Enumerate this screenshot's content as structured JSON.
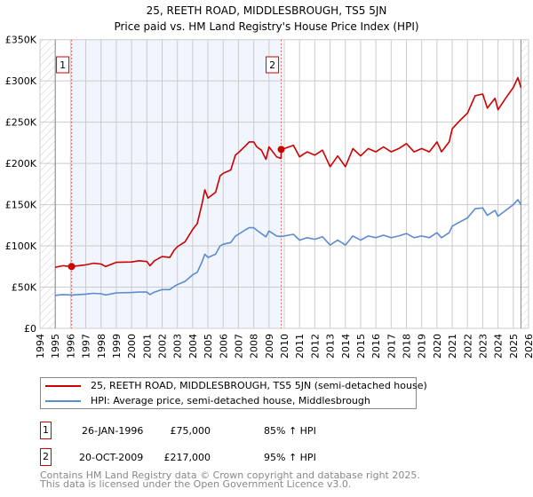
{
  "chart_data": {
    "type": "line",
    "title": "25, REETH ROAD, MIDDLESBROUGH, TS5 5JN",
    "subtitle": "Price paid vs. HM Land Registry's House Price Index (HPI)",
    "xlim": [
      1994,
      2026
    ],
    "ylim": [
      0,
      350000
    ],
    "x_ticks": [
      "1994",
      "1995",
      "1996",
      "1997",
      "1998",
      "1999",
      "2000",
      "2001",
      "2002",
      "2003",
      "2004",
      "2005",
      "2006",
      "2007",
      "2008",
      "2009",
      "2010",
      "2011",
      "2012",
      "2013",
      "2014",
      "2015",
      "2016",
      "2017",
      "2018",
      "2019",
      "2020",
      "2021",
      "2022",
      "2023",
      "2024",
      "2025",
      "2026"
    ],
    "y_ticks": [
      {
        "value": 0,
        "label": "£0"
      },
      {
        "value": 50000,
        "label": "£50K"
      },
      {
        "value": 100000,
        "label": "£100K"
      },
      {
        "value": 150000,
        "label": "£150K"
      },
      {
        "value": 200000,
        "label": "£200K"
      },
      {
        "value": 250000,
        "label": "£250K"
      },
      {
        "value": 300000,
        "label": "£300K"
      },
      {
        "value": 350000,
        "label": "£350K"
      }
    ],
    "grid": true,
    "data_range": [
      1995,
      2025.5
    ],
    "shaded_range": [
      1996.07,
      2009.8
    ],
    "series": [
      {
        "name": "25, REETH ROAD, MIDDLESBROUGH, TS5 5JN (semi-detached house)",
        "color": "#cc0000",
        "points": [
          [
            1995,
            74
          ],
          [
            1995.5,
            76
          ],
          [
            1996.07,
            75
          ],
          [
            1997,
            77
          ],
          [
            1997.5,
            79
          ],
          [
            1998,
            78
          ],
          [
            1998.3,
            75
          ],
          [
            1999,
            80
          ],
          [
            2000,
            80.5
          ],
          [
            2000.5,
            82
          ],
          [
            2001,
            81
          ],
          [
            2001.2,
            76
          ],
          [
            2001.5,
            82
          ],
          [
            2002,
            87
          ],
          [
            2002.5,
            86
          ],
          [
            2002.8,
            95
          ],
          [
            2003,
            99
          ],
          [
            2003.5,
            105
          ],
          [
            2004,
            120
          ],
          [
            2004.3,
            127
          ],
          [
            2004.6,
            150
          ],
          [
            2004.8,
            168
          ],
          [
            2005,
            158
          ],
          [
            2005.5,
            165
          ],
          [
            2005.8,
            185
          ],
          [
            2006,
            188
          ],
          [
            2006.5,
            192
          ],
          [
            2006.8,
            210
          ],
          [
            2007,
            213
          ],
          [
            2007.5,
            222
          ],
          [
            2007.7,
            226
          ],
          [
            2008,
            226
          ],
          [
            2008.2,
            220
          ],
          [
            2008.5,
            216
          ],
          [
            2008.8,
            205
          ],
          [
            2009,
            220
          ],
          [
            2009.5,
            208
          ],
          [
            2009.79,
            206
          ],
          [
            2009.8,
            217
          ],
          [
            2010,
            218
          ],
          [
            2010.6,
            222
          ],
          [
            2011,
            208
          ],
          [
            2011.5,
            214
          ],
          [
            2012,
            210
          ],
          [
            2012.5,
            216
          ],
          [
            2013,
            196
          ],
          [
            2013.5,
            209
          ],
          [
            2014,
            196
          ],
          [
            2014.5,
            218
          ],
          [
            2015,
            209
          ],
          [
            2015.5,
            218
          ],
          [
            2016,
            214
          ],
          [
            2016.5,
            220
          ],
          [
            2017,
            214
          ],
          [
            2017.5,
            218
          ],
          [
            2018,
            224
          ],
          [
            2018.5,
            214
          ],
          [
            2019,
            218
          ],
          [
            2019.5,
            214
          ],
          [
            2020,
            226
          ],
          [
            2020.3,
            214
          ],
          [
            2020.8,
            226
          ],
          [
            2021,
            242
          ],
          [
            2021.5,
            252
          ],
          [
            2022,
            261
          ],
          [
            2022.5,
            282
          ],
          [
            2023,
            284
          ],
          [
            2023.3,
            267
          ],
          [
            2023.8,
            279
          ],
          [
            2024,
            265
          ],
          [
            2024.5,
            279
          ],
          [
            2025,
            292
          ],
          [
            2025.3,
            304
          ],
          [
            2025.5,
            292
          ]
        ]
      },
      {
        "name": "HPI: Average price, semi-detached house, Middlesbrough",
        "color": "#5b8bd0",
        "points": [
          [
            1995,
            40
          ],
          [
            1995.5,
            41
          ],
          [
            1996.07,
            40.5
          ],
          [
            1997,
            41.5
          ],
          [
            1997.5,
            42.5
          ],
          [
            1998,
            42
          ],
          [
            1998.3,
            40.5
          ],
          [
            1999,
            43
          ],
          [
            2000,
            43.5
          ],
          [
            2000.5,
            44
          ],
          [
            2001,
            44
          ],
          [
            2001.2,
            41
          ],
          [
            2001.5,
            44
          ],
          [
            2002,
            47
          ],
          [
            2002.5,
            47
          ],
          [
            2002.8,
            51
          ],
          [
            2003,
            53
          ],
          [
            2003.5,
            57
          ],
          [
            2004,
            65
          ],
          [
            2004.3,
            68
          ],
          [
            2004.6,
            80
          ],
          [
            2004.8,
            90
          ],
          [
            2005,
            86
          ],
          [
            2005.5,
            90
          ],
          [
            2005.8,
            100
          ],
          [
            2006,
            102
          ],
          [
            2006.5,
            104
          ],
          [
            2006.8,
            112
          ],
          [
            2007,
            114
          ],
          [
            2007.5,
            120
          ],
          [
            2007.7,
            122
          ],
          [
            2008,
            122
          ],
          [
            2008.2,
            119
          ],
          [
            2008.5,
            115
          ],
          [
            2008.8,
            111
          ],
          [
            2009,
            118
          ],
          [
            2009.5,
            112
          ],
          [
            2009.8,
            111.3
          ],
          [
            2010,
            112
          ],
          [
            2010.6,
            114
          ],
          [
            2011,
            107
          ],
          [
            2011.5,
            110
          ],
          [
            2012,
            108
          ],
          [
            2012.5,
            111
          ],
          [
            2013,
            101
          ],
          [
            2013.5,
            107
          ],
          [
            2014,
            101
          ],
          [
            2014.5,
            112
          ],
          [
            2015,
            107
          ],
          [
            2015.5,
            112
          ],
          [
            2016,
            110
          ],
          [
            2016.5,
            113
          ],
          [
            2017,
            110
          ],
          [
            2017.5,
            112
          ],
          [
            2018,
            115
          ],
          [
            2018.5,
            110
          ],
          [
            2019,
            112
          ],
          [
            2019.5,
            110
          ],
          [
            2020,
            116
          ],
          [
            2020.3,
            110
          ],
          [
            2020.8,
            116
          ],
          [
            2021,
            124
          ],
          [
            2021.5,
            129
          ],
          [
            2022,
            134
          ],
          [
            2022.5,
            145
          ],
          [
            2023,
            146
          ],
          [
            2023.3,
            137
          ],
          [
            2023.8,
            143
          ],
          [
            2024,
            136
          ],
          [
            2024.5,
            143
          ],
          [
            2025,
            150
          ],
          [
            2025.3,
            156
          ],
          [
            2025.5,
            150
          ]
        ]
      }
    ],
    "y_point_unit": "thousands GBP",
    "sales": [
      {
        "num": "1",
        "x": 1996.07,
        "price_value": 75000,
        "date": "26-JAN-1996",
        "price": "£75,000",
        "hpi": "85% ↑ HPI"
      },
      {
        "num": "2",
        "x": 2009.8,
        "price_value": 217000,
        "date": "20-OCT-2009",
        "price": "£217,000",
        "hpi": "95% ↑ HPI"
      }
    ],
    "legend_placement": "below"
  },
  "footer": {
    "line1": "Contains HM Land Registry data © Crown copyright and database right 2025.",
    "line2": "This data is licensed under the Open Government Licence v3.0."
  }
}
